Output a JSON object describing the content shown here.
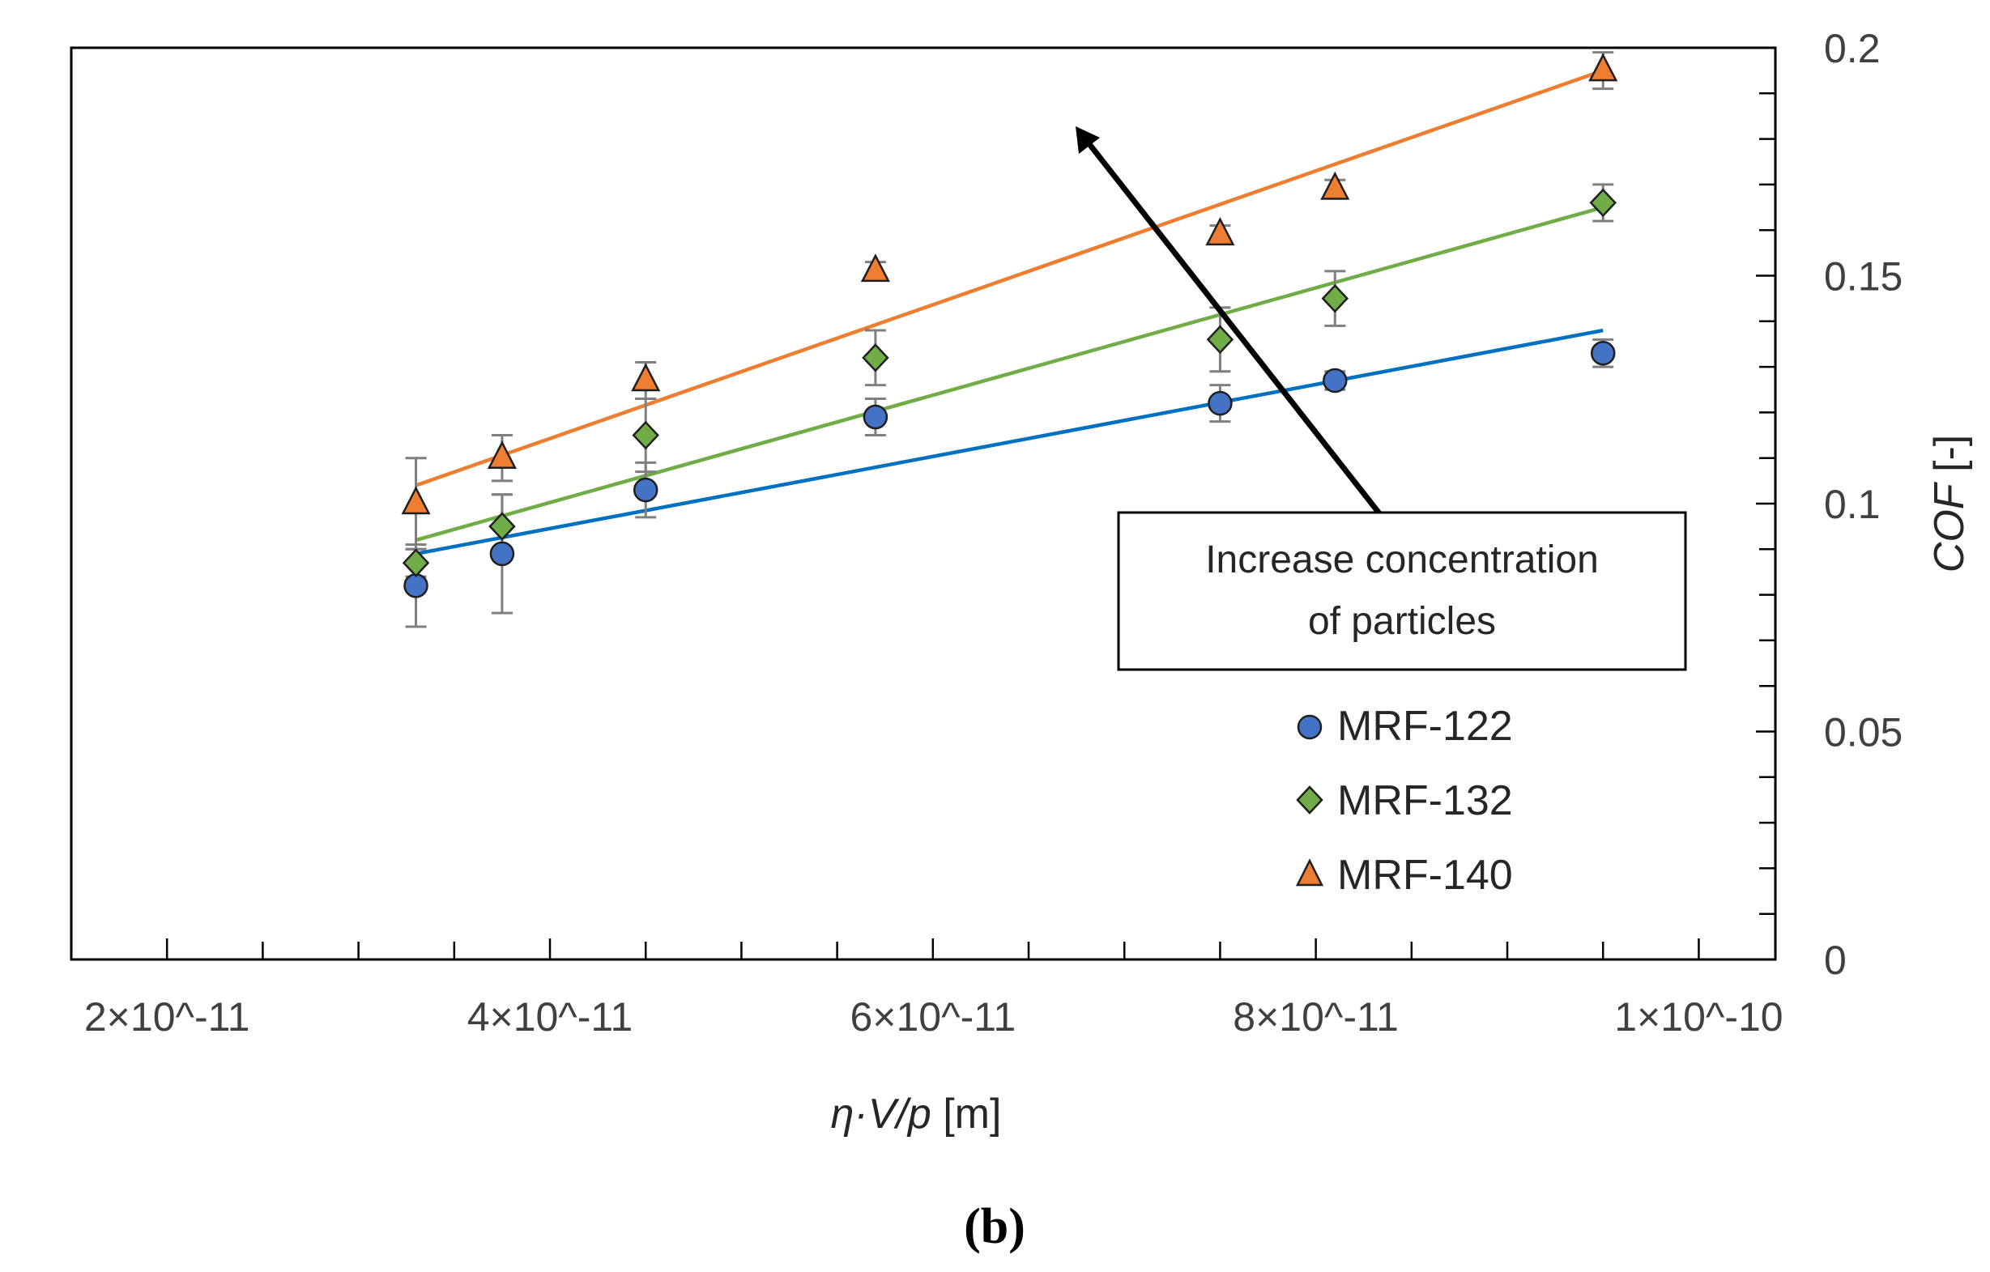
{
  "chart_data": {
    "type": "scatter",
    "caption": "(b)",
    "xlabel": {
      "italic": "η·V/p",
      "unit": " [m]"
    },
    "ylabel": {
      "italic": "COF",
      "unit": " [-]"
    },
    "xlim": [
      1.5e-11,
      1.04e-10
    ],
    "ylim": [
      0,
      0.2
    ],
    "x_ticks": [
      {
        "value": 2e-11,
        "label": "2×10^-11"
      },
      {
        "value": 4e-11,
        "label": "4×10^-11"
      },
      {
        "value": 6e-11,
        "label": "6×10^-11"
      },
      {
        "value": 8e-11,
        "label": "8×10^-11"
      },
      {
        "value": 1e-10,
        "label": "1×10^-10"
      }
    ],
    "y_ticks": [
      {
        "value": 0,
        "label": "0"
      },
      {
        "value": 0.05,
        "label": "0.05"
      },
      {
        "value": 0.1,
        "label": "0.1"
      },
      {
        "value": 0.15,
        "label": "0.15"
      },
      {
        "value": 0.2,
        "label": "0.2"
      }
    ],
    "x": [
      3.3e-11,
      3.75e-11,
      4.5e-11,
      5.7e-11,
      7.5e-11,
      8.1e-11,
      9.5e-11
    ],
    "series": [
      {
        "name": "MRF-122",
        "marker": "circle",
        "color": "#4472C4",
        "values": [
          0.082,
          0.089,
          0.103,
          0.119,
          0.122,
          0.127,
          0.133
        ],
        "errors": [
          0.009,
          0.013,
          0.006,
          0.004,
          0.004,
          0.002,
          0.003
        ],
        "trend": {
          "x": [
            3.3e-11,
            9.5e-11
          ],
          "y": [
            0.089,
            0.138
          ],
          "color": "#0070C0"
        }
      },
      {
        "name": "MRF-132",
        "marker": "diamond",
        "color": "#70AD47",
        "values": [
          0.087,
          0.095,
          0.115,
          0.132,
          0.136,
          0.145,
          0.166
        ],
        "errors": [
          0.003,
          0.007,
          0.008,
          0.006,
          0.007,
          0.006,
          0.004
        ],
        "trend": {
          "x": [
            3.3e-11,
            9.5e-11
          ],
          "y": [
            0.092,
            0.165
          ],
          "color": "#70AD47"
        }
      },
      {
        "name": "MRF-140",
        "marker": "triangle",
        "color": "#ED7D31",
        "values": [
          0.1,
          0.11,
          0.127,
          0.151,
          0.159,
          0.169,
          0.195
        ],
        "errors": [
          0.01,
          0.005,
          0.004,
          0.002,
          0.002,
          0.002,
          0.004
        ],
        "trend": {
          "x": [
            3.3e-11,
            9.5e-11
          ],
          "y": [
            0.104,
            0.195
          ],
          "color": "#ED7D31"
        }
      }
    ],
    "annotation": {
      "lines": [
        "Increase concentration",
        "of particles"
      ],
      "arrow_direction": "toward higher concentration (up-left)"
    },
    "legend": {
      "placement": "right-bottom",
      "entries": [
        "MRF-122",
        "MRF-132",
        "MRF-140"
      ]
    }
  },
  "colors": {
    "axis": "#000000",
    "error_bar": "#7F7F7F",
    "marker_edge": "#1F1F1F"
  }
}
